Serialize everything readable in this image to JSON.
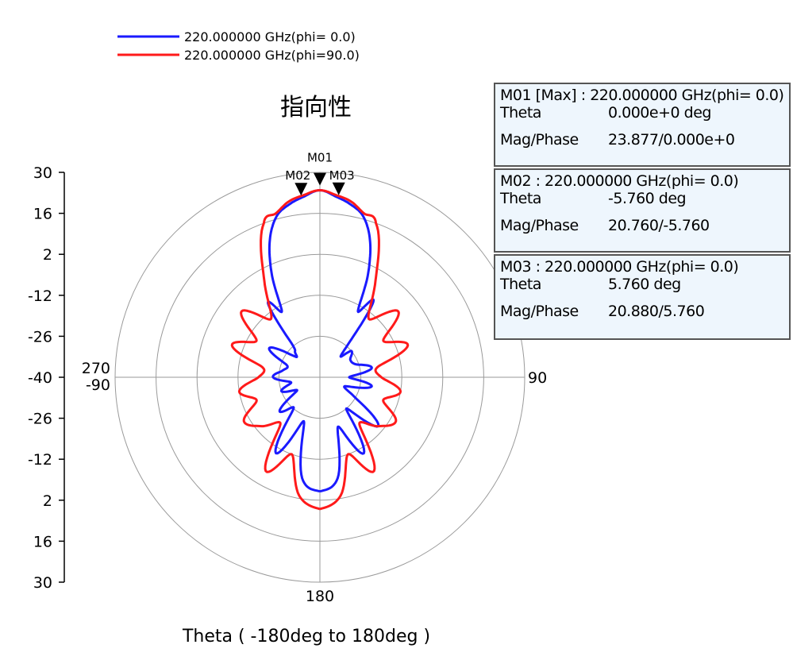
{
  "chart_data": {
    "type": "polar-line",
    "title": "指向性",
    "xlabel": "Theta ( -180deg to 180deg )",
    "radial_ticks": [
      "30",
      "16",
      "2",
      "-12",
      "-26",
      "-40",
      "-26",
      "-12",
      "2",
      "16",
      "30"
    ],
    "radial_range": [
      -40,
      30
    ],
    "angle_labels": {
      "top": "",
      "right": "90",
      "bottom": "180",
      "left_top": "270",
      "left_bottom": "-90"
    },
    "series": [
      {
        "name": "220.000000 GHz(phi= 0.0)",
        "color": "#1a1aff",
        "theta_deg": [
          -180,
          -170,
          -160,
          -150,
          -140,
          -130,
          -120,
          -110,
          -100,
          -90,
          -80,
          -70,
          -60,
          -50,
          -45,
          -40,
          -35,
          -30,
          -25,
          -20,
          -15,
          -10,
          -5,
          0,
          5,
          10,
          15,
          20,
          25,
          30,
          35,
          40,
          45,
          50,
          60,
          70,
          80,
          90,
          100,
          110,
          120,
          130,
          140,
          150,
          160,
          170,
          180
        ],
        "values": [
          -1,
          -5,
          -24,
          -10,
          -26,
          -22,
          -31,
          -26,
          -30,
          -24,
          -27,
          -28,
          -20,
          -29,
          -28,
          -25,
          -9,
          -14,
          -1,
          10,
          17,
          20,
          22,
          23.9,
          22,
          20,
          17,
          10,
          -1,
          -14,
          -8,
          -24,
          -30,
          -26,
          -28,
          -27,
          -22,
          -30,
          -22,
          -31,
          -26,
          -14,
          -26,
          -10,
          -22,
          -5,
          -1
        ]
      },
      {
        "name": "220.000000 GHz(phi=90.0)",
        "color": "#ff1a1a",
        "theta_deg": [
          -180,
          -170,
          -160,
          -150,
          -140,
          -130,
          -120,
          -110,
          -100,
          -90,
          -80,
          -70,
          -60,
          -50,
          -40,
          -30,
          -20,
          -15,
          -10,
          -5,
          0,
          5,
          10,
          15,
          20,
          30,
          40,
          50,
          60,
          70,
          80,
          90,
          100,
          110,
          120,
          130,
          140,
          150,
          160,
          170,
          180
        ],
        "values": [
          5,
          1,
          -12,
          -3,
          -19,
          -14,
          -10,
          -17,
          -12,
          -19,
          -20,
          -8,
          -15,
          -5,
          -14,
          -2,
          16,
          18,
          21,
          22.5,
          23.9,
          22.5,
          21,
          18,
          16,
          -2,
          -14,
          -5,
          -15,
          -8,
          -20,
          -19,
          -12,
          -17,
          -10,
          -14,
          -19,
          -3,
          -12,
          1,
          5
        ]
      }
    ],
    "markers": [
      {
        "id": "M01",
        "theta": 0.0,
        "value": 23.877
      },
      {
        "id": "M02",
        "theta": -5.76,
        "value": 20.76
      },
      {
        "id": "M03",
        "theta": 5.76,
        "value": 20.88
      }
    ]
  },
  "marker_boxes": [
    {
      "header": "M01 [Max] : 220.000000 GHz(phi= 0.0)",
      "theta_label": "Theta",
      "theta_value": "0.000e+0  deg",
      "mp_label": "Mag/Phase",
      "mp_value": "23.877/0.000e+0"
    },
    {
      "header": "M02 : 220.000000 GHz(phi= 0.0)",
      "theta_label": "Theta",
      "theta_value": "-5.760  deg",
      "mp_label": "Mag/Phase",
      "mp_value": "20.760/-5.760"
    },
    {
      "header": "M03 : 220.000000 GHz(phi= 0.0)",
      "theta_label": "Theta",
      "theta_value": "5.760  deg",
      "mp_label": "Mag/Phase",
      "mp_value": "20.880/5.760"
    }
  ]
}
